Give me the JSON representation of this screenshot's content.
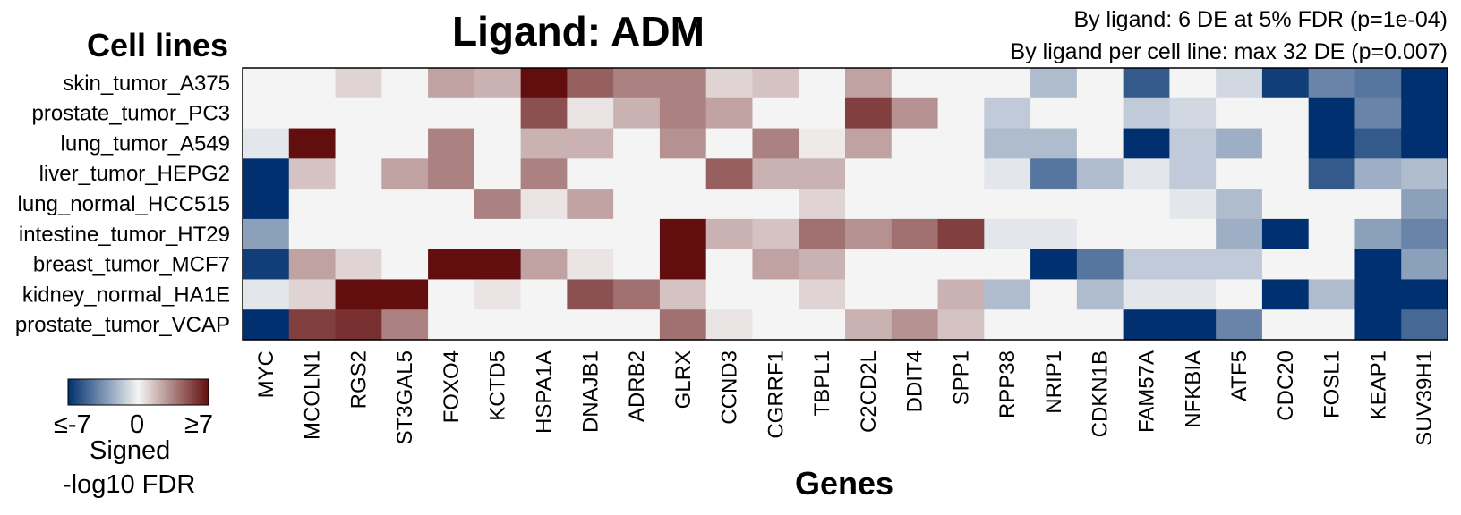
{
  "chart_data": {
    "type": "heatmap",
    "title": "Ligand: ADM",
    "annotations": [
      "By ligand: 6 DE at 5% FDR (p=1e-04)",
      "By ligand per cell line: max 32 DE (p=0.007)"
    ],
    "xlabel": "Genes",
    "ylabel": "Cell lines",
    "rows": [
      "skin_tumor_A375",
      "prostate_tumor_PC3",
      "lung_tumor_A549",
      "liver_tumor_HEPG2",
      "lung_normal_HCC515",
      "intestine_tumor_HT29",
      "breast_tumor_MCF7",
      "kidney_normal_HA1E",
      "prostate_tumor_VCAP"
    ],
    "columns": [
      "MYC",
      "MCOLN1",
      "RGS2",
      "ST3GAL5",
      "FOXO4",
      "KCTD5",
      "HSPA1A",
      "DNAJB1",
      "ADRB2",
      "GLRX",
      "CCND3",
      "CGRRF1",
      "TBPL1",
      "C2CD2L",
      "DDIT4",
      "SPP1",
      "RPP38",
      "NRIP1",
      "CDKN1B",
      "FAM57A",
      "NFKBIA",
      "ATF5",
      "CDC20",
      "FOSL1",
      "KEAP1",
      "SUV39H1"
    ],
    "values": [
      [
        0,
        0,
        1,
        0,
        2.5,
        2,
        7,
        4.5,
        3.5,
        3.5,
        1,
        1.5,
        0,
        2.5,
        0,
        0,
        0,
        -2,
        0,
        -5.5,
        0,
        -1,
        -6.5,
        -4,
        -4.5,
        -7
      ],
      [
        0,
        0,
        0,
        0,
        0,
        0,
        5,
        0.5,
        2,
        3.5,
        2.5,
        0,
        0,
        5.5,
        3,
        0,
        -1.5,
        0,
        0,
        -1.5,
        -1,
        0,
        0,
        -7,
        -4,
        -7
      ],
      [
        -0.5,
        7,
        0,
        0,
        3.5,
        0,
        2,
        2,
        0,
        3,
        0,
        3.5,
        0.3,
        2.5,
        0,
        0,
        -2,
        -2,
        0,
        -7,
        -1.5,
        -2.5,
        0,
        -7,
        -5.5,
        -7
      ],
      [
        -7,
        1.5,
        0,
        2.5,
        3.5,
        0,
        3.5,
        0,
        0,
        0,
        4.5,
        2,
        2,
        0,
        0,
        0,
        -0.5,
        -4.5,
        -2,
        -0.5,
        -1.5,
        0,
        0,
        -5.5,
        -2.5,
        -2
      ],
      [
        -7,
        0,
        0,
        0,
        0,
        3.5,
        0.5,
        2.5,
        0,
        0,
        0,
        0,
        1,
        0,
        0,
        0,
        0,
        0,
        0,
        0,
        -0.5,
        -2,
        0,
        0,
        0,
        -3
      ],
      [
        -3,
        0,
        0,
        0,
        0,
        0,
        0,
        0,
        0,
        7,
        2,
        1.5,
        4,
        3,
        4,
        5.5,
        -0.5,
        -0.5,
        0,
        0,
        0,
        -2.5,
        -7,
        0,
        -3,
        -4
      ],
      [
        -6.5,
        2.5,
        1,
        0,
        7,
        7,
        2.5,
        0.5,
        0,
        7,
        0,
        2.5,
        2,
        0,
        0,
        0,
        0,
        -7,
        -4.5,
        -1.5,
        -1.5,
        -1.5,
        0,
        0,
        -7,
        -3
      ],
      [
        -0.5,
        1,
        7,
        7,
        0,
        0.5,
        0,
        5,
        4,
        1.5,
        0,
        0,
        1,
        0,
        0,
        2,
        -2,
        0,
        -2,
        -0.5,
        -0.5,
        0,
        -7,
        -2,
        -7,
        -7
      ],
      [
        -7,
        5.5,
        6,
        3.5,
        0,
        0,
        0,
        0,
        0,
        4,
        0.5,
        0,
        0,
        2,
        3,
        1.5,
        0,
        0,
        0,
        -7,
        -7,
        -4,
        0,
        0,
        -7,
        -5
      ]
    ],
    "legend": {
      "min_label": "≤-7",
      "mid_label": "0",
      "max_label": "≥7",
      "title": [
        "Signed",
        "-log10 FDR"
      ],
      "range": [
        -7,
        7
      ]
    },
    "colors": {
      "neg": "#00306f",
      "mid": "#f4f4f4",
      "pos": "#620e0e"
    }
  }
}
